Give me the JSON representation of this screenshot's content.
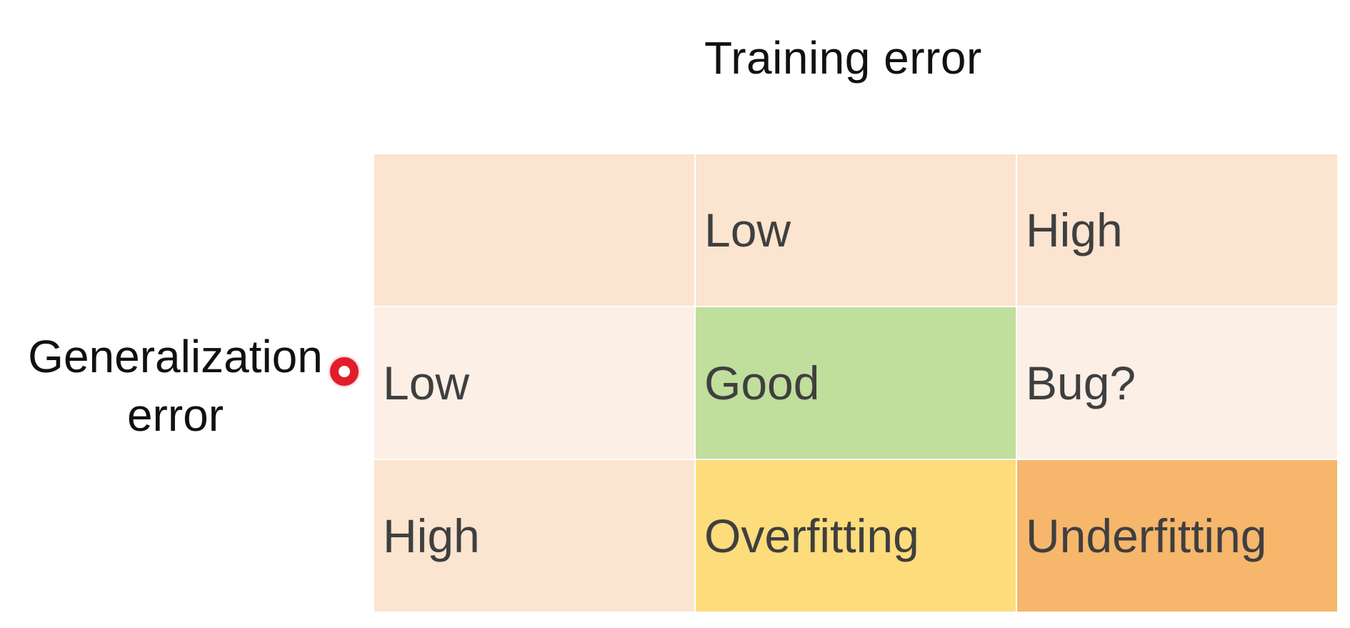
{
  "column_title": "Training error",
  "row_title_lines": [
    "Generalization",
    "error"
  ],
  "grid": {
    "rows": [
      {
        "cells": [
          {
            "label": "",
            "color": "#fbe4d0"
          },
          {
            "label": "Low",
            "color": "#fbe4d0"
          },
          {
            "label": "High",
            "color": "#fbe4d0"
          }
        ]
      },
      {
        "cells": [
          {
            "label": "Low",
            "color": "#fcefe6"
          },
          {
            "label": "Good",
            "color": "#c0de9c"
          },
          {
            "label": "Bug?",
            "color": "#fcefe6"
          }
        ]
      },
      {
        "cells": [
          {
            "label": "High",
            "color": "#fbe4d0"
          },
          {
            "label": "Overfitting",
            "color": "#fddc7c"
          },
          {
            "label": "Underfitting",
            "color": "#f6b66c"
          }
        ]
      }
    ]
  },
  "cursor": {
    "color": "#e11d2a"
  }
}
